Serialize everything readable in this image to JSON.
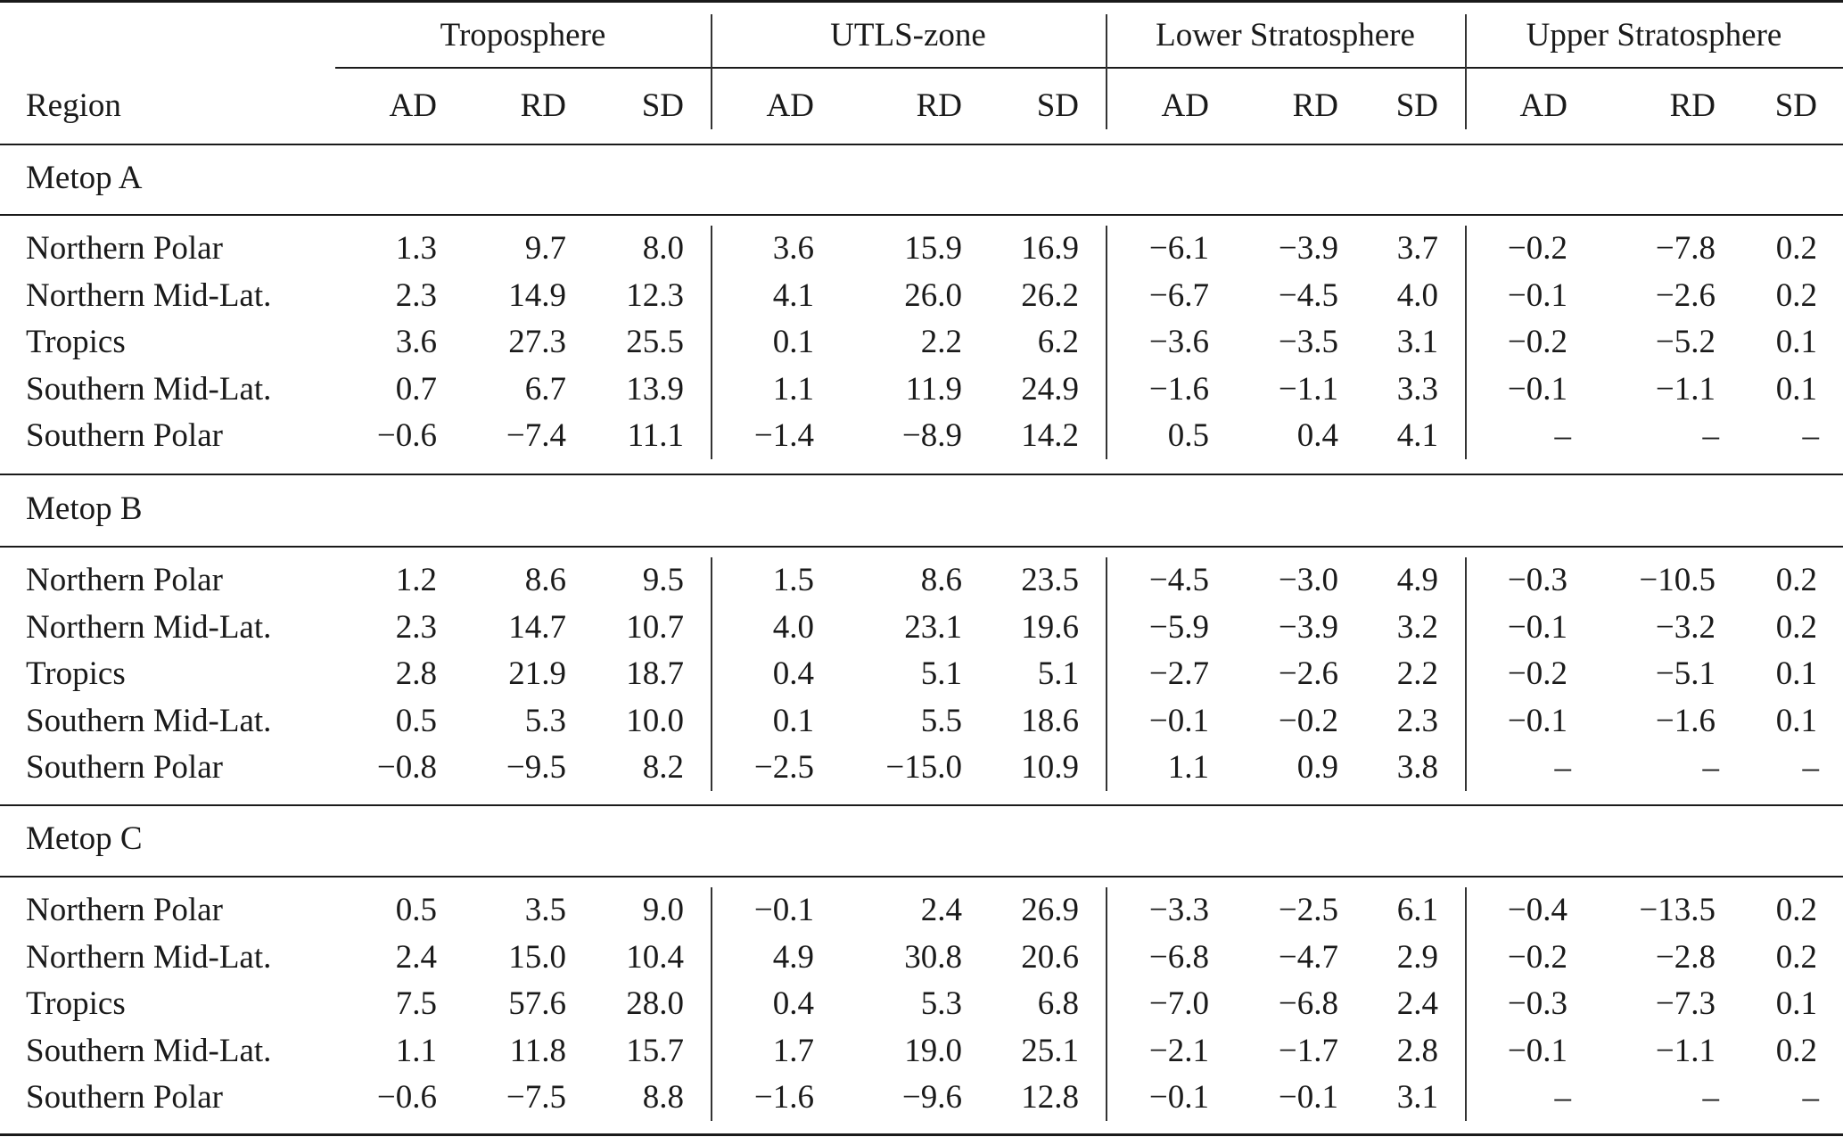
{
  "groups": [
    "Troposphere",
    "UTLS-zone",
    "Lower Stratosphere",
    "Upper Stratosphere"
  ],
  "region_header": "Region",
  "subheaders": [
    "AD",
    "RD",
    "SD"
  ],
  "sections": [
    {
      "label": "Metop A",
      "rows": [
        {
          "region": "Northern Polar",
          "values": [
            "1.3",
            "9.7",
            "8.0",
            "3.6",
            "15.9",
            "16.9",
            "−6.1",
            "−3.9",
            "3.7",
            "−0.2",
            "−7.8",
            "0.2"
          ]
        },
        {
          "region": "Northern Mid-Lat.",
          "values": [
            "2.3",
            "14.9",
            "12.3",
            "4.1",
            "26.0",
            "26.2",
            "−6.7",
            "−4.5",
            "4.0",
            "−0.1",
            "−2.6",
            "0.2"
          ]
        },
        {
          "region": "Tropics",
          "values": [
            "3.6",
            "27.3",
            "25.5",
            "0.1",
            "2.2",
            "6.2",
            "−3.6",
            "−3.5",
            "3.1",
            "−0.2",
            "−5.2",
            "0.1"
          ]
        },
        {
          "region": "Southern Mid-Lat.",
          "values": [
            "0.7",
            "6.7",
            "13.9",
            "1.1",
            "11.9",
            "24.9",
            "−1.6",
            "−1.1",
            "3.3",
            "−0.1",
            "−1.1",
            "0.1"
          ]
        },
        {
          "region": "Southern Polar",
          "values": [
            "−0.6",
            "−7.4",
            "11.1",
            "−1.4",
            "−8.9",
            "14.2",
            "0.5",
            "0.4",
            "4.1",
            "–",
            "–",
            "–"
          ]
        }
      ]
    },
    {
      "label": "Metop B",
      "rows": [
        {
          "region": "Northern Polar",
          "values": [
            "1.2",
            "8.6",
            "9.5",
            "1.5",
            "8.6",
            "23.5",
            "−4.5",
            "−3.0",
            "4.9",
            "−0.3",
            "−10.5",
            "0.2"
          ]
        },
        {
          "region": "Northern Mid-Lat.",
          "values": [
            "2.3",
            "14.7",
            "10.7",
            "4.0",
            "23.1",
            "19.6",
            "−5.9",
            "−3.9",
            "3.2",
            "−0.1",
            "−3.2",
            "0.2"
          ]
        },
        {
          "region": "Tropics",
          "values": [
            "2.8",
            "21.9",
            "18.7",
            "0.4",
            "5.1",
            "5.1",
            "−2.7",
            "−2.6",
            "2.2",
            "−0.2",
            "−5.1",
            "0.1"
          ]
        },
        {
          "region": "Southern Mid-Lat.",
          "values": [
            "0.5",
            "5.3",
            "10.0",
            "0.1",
            "5.5",
            "18.6",
            "−0.1",
            "−0.2",
            "2.3",
            "−0.1",
            "−1.6",
            "0.1"
          ]
        },
        {
          "region": "Southern Polar",
          "values": [
            "−0.8",
            "−9.5",
            "8.2",
            "−2.5",
            "−15.0",
            "10.9",
            "1.1",
            "0.9",
            "3.8",
            "–",
            "–",
            "–"
          ]
        }
      ]
    },
    {
      "label": "Metop C",
      "rows": [
        {
          "region": "Northern Polar",
          "values": [
            "0.5",
            "3.5",
            "9.0",
            "−0.1",
            "2.4",
            "26.9",
            "−3.3",
            "−2.5",
            "6.1",
            "−0.4",
            "−13.5",
            "0.2"
          ]
        },
        {
          "region": "Northern Mid-Lat.",
          "values": [
            "2.4",
            "15.0",
            "10.4",
            "4.9",
            "30.8",
            "20.6",
            "−6.8",
            "−4.7",
            "2.9",
            "−0.2",
            "−2.8",
            "0.2"
          ]
        },
        {
          "region": "Tropics",
          "values": [
            "7.5",
            "57.6",
            "28.0",
            "0.4",
            "5.3",
            "6.8",
            "−7.0",
            "−6.8",
            "2.4",
            "−0.3",
            "−7.3",
            "0.1"
          ]
        },
        {
          "region": "Southern Mid-Lat.",
          "values": [
            "1.1",
            "11.8",
            "15.7",
            "1.7",
            "19.0",
            "25.1",
            "−2.1",
            "−1.7",
            "2.8",
            "−0.1",
            "−1.1",
            "0.2"
          ]
        },
        {
          "region": "Southern Polar",
          "values": [
            "−0.6",
            "−7.5",
            "8.8",
            "−1.6",
            "−9.6",
            "12.8",
            "−0.1",
            "−0.1",
            "3.1",
            "–",
            "–",
            "–"
          ]
        }
      ]
    }
  ]
}
